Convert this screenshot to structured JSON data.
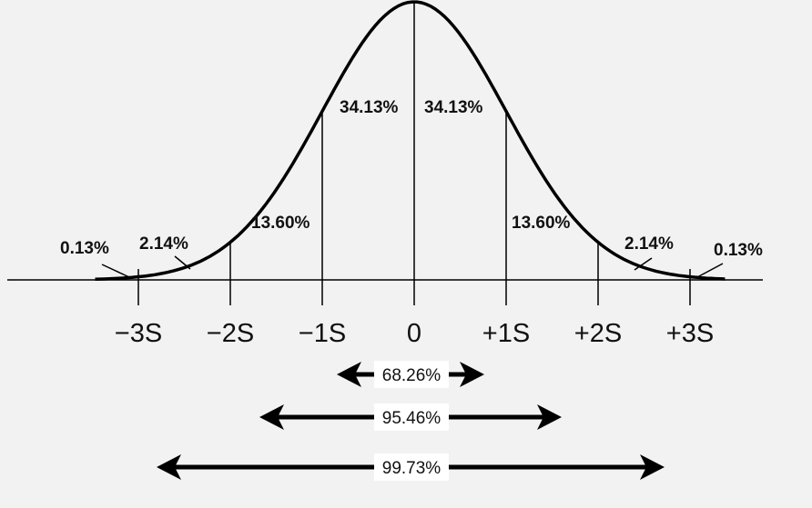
{
  "diagram": {
    "segment_labels": [
      "0.13%",
      "2.14%",
      "13.60%",
      "34.13%",
      "34.13%",
      "13.60%",
      "2.14%",
      "0.13%"
    ],
    "axis_labels": [
      "−3S",
      "−2S",
      "−1S",
      "0",
      "+1S",
      "+2S",
      "+3S"
    ],
    "ranges": [
      {
        "label": "68.26%",
        "from": -1,
        "to": 1
      },
      {
        "label": "95.46%",
        "from": -2,
        "to": 2
      },
      {
        "label": "99.73%",
        "from": -3,
        "to": 3
      }
    ],
    "colors": {
      "background": "#f2f2f2",
      "ink": "#000000",
      "label_box": "#ffffff"
    }
  }
}
